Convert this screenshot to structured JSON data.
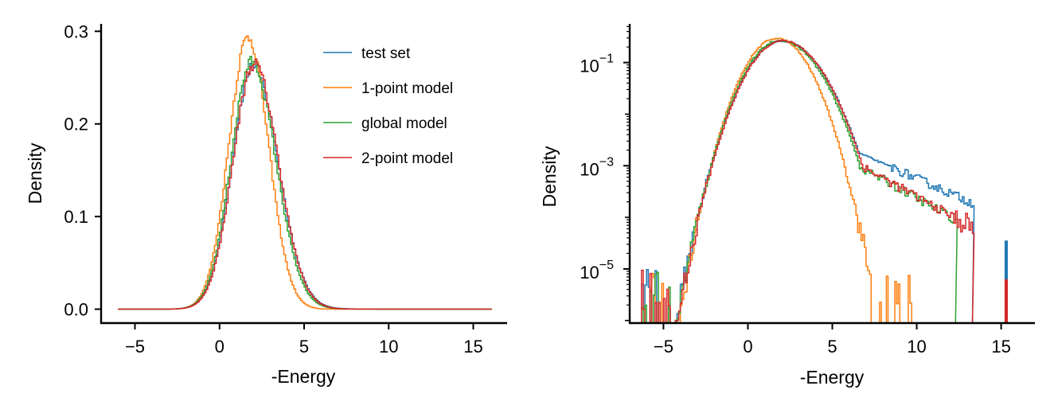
{
  "chart_data": [
    {
      "type": "step",
      "title": "",
      "xlabel": "-Energy",
      "ylabel": "Density",
      "xlim": [
        -7,
        17
      ],
      "ylim": [
        -0.015,
        0.308
      ],
      "yscale": "linear",
      "xticks": [
        -5,
        0,
        5,
        10,
        15
      ],
      "xtick_labels": [
        "−5",
        "0",
        "5",
        "10",
        "15"
      ],
      "yticks": [
        0.0,
        0.1,
        0.2,
        0.3
      ],
      "ytick_labels": [
        "0.0",
        "0.1",
        "0.2",
        "0.3"
      ],
      "grid": false,
      "legend": "upper-right",
      "series": [
        {
          "name": "test set",
          "color": "#1f77b4",
          "peak_x": 2.0,
          "peak_y": 0.262,
          "sigma_left": 1.25,
          "sigma_right": 1.45,
          "tail": 0.004,
          "x_range": [
            -6,
            16
          ]
        },
        {
          "name": "1-point model",
          "color": "#ff7f0e",
          "peak_x": 1.7,
          "peak_y": 0.294,
          "sigma_left": 1.15,
          "sigma_right": 1.2,
          "tail": 0.0,
          "x_range": [
            -6,
            16
          ]
        },
        {
          "name": "global model",
          "color": "#2ca02c",
          "peak_x": 1.9,
          "peak_y": 0.267,
          "sigma_left": 1.22,
          "sigma_right": 1.42,
          "tail": 0.002,
          "x_range": [
            -6,
            16
          ]
        },
        {
          "name": "2-point model",
          "color": "#d62728",
          "peak_x": 2.05,
          "peak_y": 0.265,
          "sigma_left": 1.25,
          "sigma_right": 1.42,
          "tail": 0.002,
          "x_range": [
            -6,
            16
          ]
        }
      ]
    },
    {
      "type": "step",
      "title": "",
      "xlabel": "-Energy",
      "ylabel": "Density",
      "xlim": [
        -7,
        17
      ],
      "ylim_log10": [
        -6.05,
        -0.25
      ],
      "yscale": "log",
      "xticks": [
        -5,
        0,
        5,
        10,
        15
      ],
      "xtick_labels": [
        "−5",
        "0",
        "5",
        "10",
        "15"
      ],
      "yticks_log10": [
        -1,
        -3,
        -5
      ],
      "ytick_base": "10",
      "ytick_exponents": [
        "−1",
        "−3",
        "−5"
      ],
      "grid": false,
      "legend": "none",
      "series": [
        {
          "name": "test set",
          "color": "#1f77b4",
          "peak_x": 2.0,
          "peak_y": 0.262,
          "sigma_left": 1.25,
          "sigma_right": 1.45,
          "tail_end": 13.3,
          "spike_x": 15.3,
          "spike_log10": -4.45
        },
        {
          "name": "1-point model",
          "color": "#ff7f0e",
          "peak_x": 1.7,
          "peak_y": 0.294,
          "sigma_left": 1.15,
          "sigma_right": 1.2,
          "tail_end": 9.8
        },
        {
          "name": "global model",
          "color": "#2ca02c",
          "peak_x": 1.9,
          "peak_y": 0.267,
          "sigma_left": 1.22,
          "sigma_right": 1.42,
          "tail_end": 12.3
        },
        {
          "name": "2-point model",
          "color": "#d62728",
          "peak_x": 2.05,
          "peak_y": 0.265,
          "sigma_left": 1.25,
          "sigma_right": 1.42,
          "tail_end": 13.3,
          "spike_x": 15.3,
          "spike_log10": -5.2
        }
      ]
    }
  ]
}
